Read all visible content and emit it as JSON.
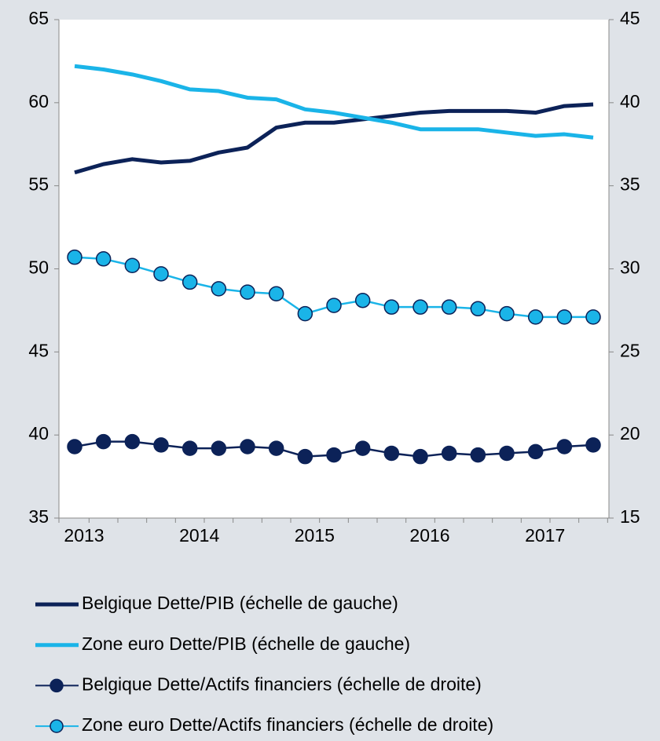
{
  "chart_data": {
    "type": "line",
    "categories": [
      "2013",
      null,
      null,
      null,
      "2014",
      null,
      null,
      null,
      "2015",
      null,
      null,
      null,
      "2016",
      null,
      null,
      null,
      "2017",
      null,
      null
    ],
    "ylim": [
      35,
      65
    ],
    "yticks": [
      35,
      40,
      45,
      50,
      55,
      60,
      65
    ],
    "y2lim": [
      15,
      45
    ],
    "y2ticks": [
      15,
      20,
      25,
      30,
      35,
      40,
      45
    ],
    "grid": false,
    "legend": "bottom",
    "series": [
      {
        "name": "Belgique Dette/PIB (échelle de gauche)",
        "color": "#0c2258",
        "marker": false,
        "values": [
          55.8,
          56.3,
          56.6,
          56.4,
          56.5,
          57.0,
          57.3,
          58.5,
          58.8,
          58.8,
          59.0,
          59.2,
          59.4,
          59.5,
          59.5,
          59.5,
          59.4,
          59.8,
          59.9
        ]
      },
      {
        "name": "Zone euro Dette/PIB (échelle de gauche)",
        "color": "#1ab4e8",
        "marker": false,
        "values": [
          62.2,
          62.0,
          61.7,
          61.3,
          60.8,
          60.7,
          60.3,
          60.2,
          59.6,
          59.4,
          59.1,
          58.8,
          58.4,
          58.4,
          58.4,
          58.2,
          58.0,
          58.1,
          57.9
        ]
      },
      {
        "name": "Belgique Dette/Actifs financiers (échelle de droite)",
        "color": "#0c2258",
        "marker": true,
        "axis": "y2",
        "values": [
          19.3,
          19.6,
          19.6,
          19.4,
          19.2,
          19.2,
          19.3,
          19.2,
          18.7,
          18.8,
          19.2,
          18.9,
          18.7,
          18.9,
          18.8,
          18.9,
          19.0,
          19.3,
          19.4
        ]
      },
      {
        "name": "Zone euro Dette/Actifs financiers (échelle de droite)",
        "color": "#1ab4e8",
        "marker": true,
        "axis": "y2",
        "values": [
          30.7,
          30.6,
          30.2,
          29.7,
          29.2,
          28.8,
          28.6,
          28.5,
          27.3,
          27.8,
          28.1,
          27.7,
          27.7,
          27.7,
          27.6,
          27.3,
          27.1,
          27.1,
          27.1
        ]
      }
    ]
  }
}
